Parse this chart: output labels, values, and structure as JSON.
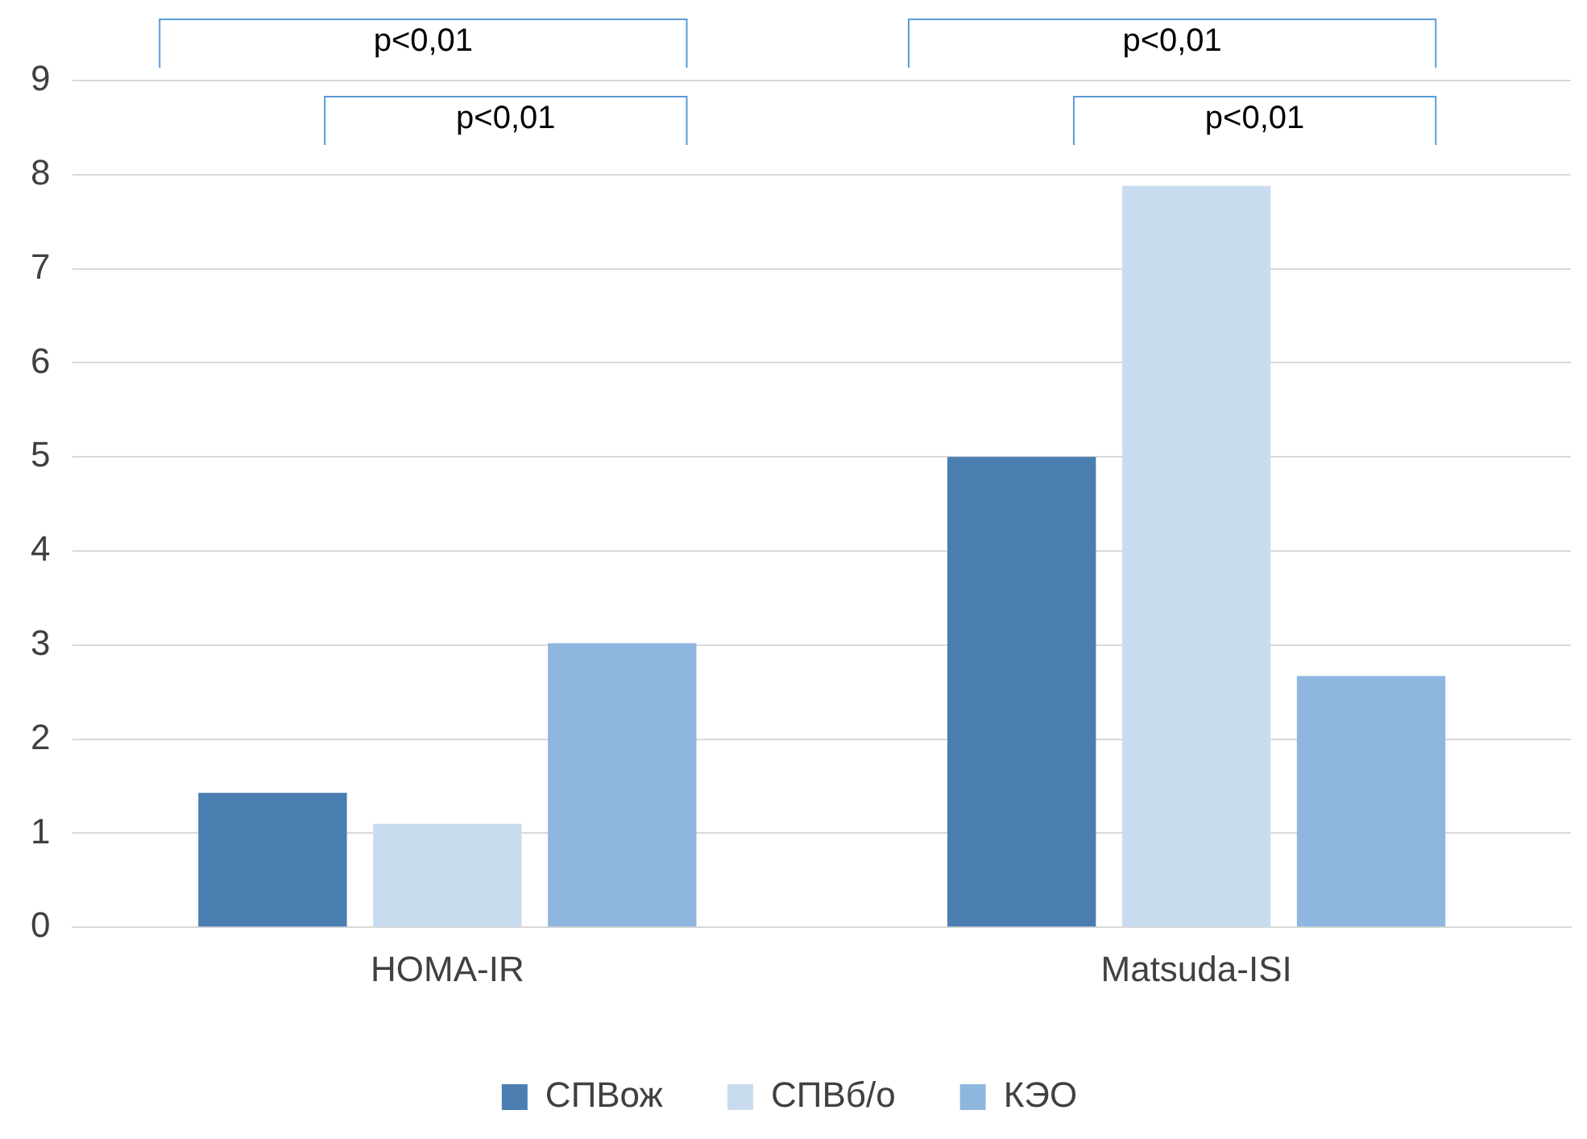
{
  "chart_data": {
    "type": "bar",
    "categories": [
      "HOMA-IR",
      "Matsuda-ISI"
    ],
    "series": [
      {
        "name": "СПВож",
        "color": "#4a7eb1",
        "values": [
          1.43,
          5.0
        ]
      },
      {
        "name": "СПВб/о",
        "color": "#c9dcef",
        "values": [
          1.1,
          7.88
        ]
      },
      {
        "name": "КЭО",
        "color": "#8fb6df",
        "values": [
          3.02,
          2.67
        ]
      }
    ],
    "ylim": [
      0,
      9
    ],
    "yticks": [
      0,
      1,
      2,
      3,
      4,
      5,
      6,
      7,
      8,
      9
    ],
    "grid": "y",
    "legend": "bottom",
    "annotations": [
      "p<0,01",
      "p<0,01",
      "p<0,01",
      "p<0,01"
    ]
  }
}
